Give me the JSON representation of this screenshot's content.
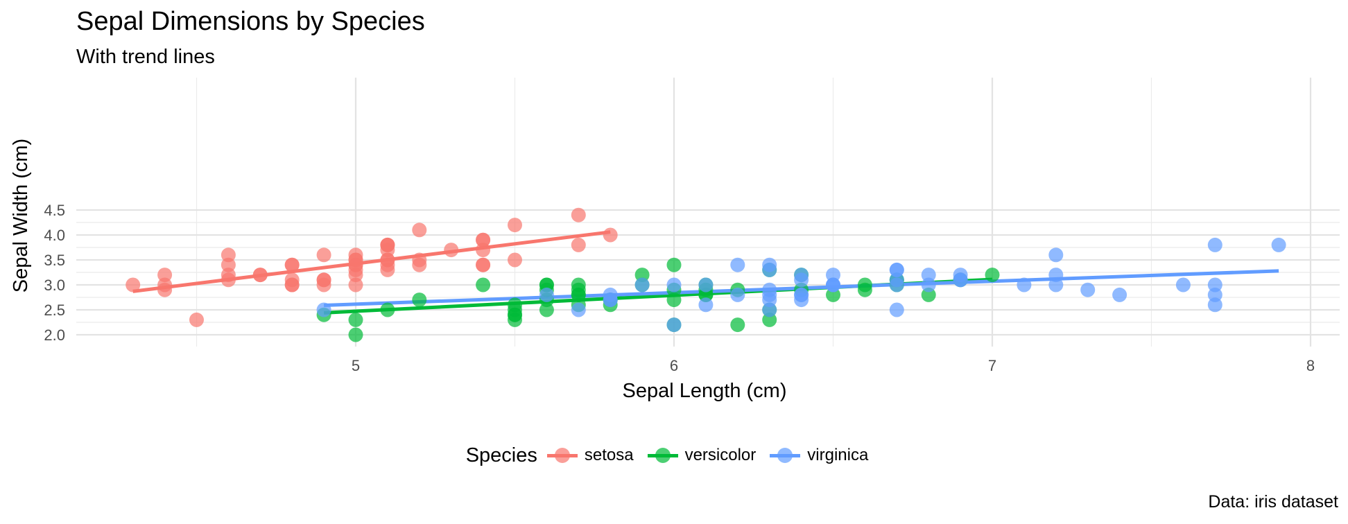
{
  "chart_data": {
    "type": "scatter",
    "title": "Sepal Dimensions by Species",
    "subtitle": "With trend lines",
    "xlabel": "Sepal Length (cm)",
    "ylabel": "Sepal Width (cm)",
    "caption": "Data: iris dataset",
    "xlim": [
      4.3,
      7.9
    ],
    "ylim": [
      2.0,
      4.4
    ],
    "x_ticks": [
      5,
      6,
      7,
      8
    ],
    "y_ticks": [
      "2.0",
      "2.5",
      "3.0",
      "3.5",
      "4.0",
      "4.5"
    ],
    "grid": true,
    "legend": {
      "title": "Species",
      "position": "bottom"
    },
    "series": [
      {
        "name": "setosa",
        "color": "#F8766D",
        "trend": [
          [
            4.3,
            2.87
          ],
          [
            5.8,
            4.06
          ]
        ],
        "points": [
          [
            5.1,
            3.5
          ],
          [
            4.9,
            3.0
          ],
          [
            4.7,
            3.2
          ],
          [
            4.6,
            3.1
          ],
          [
            5.0,
            3.6
          ],
          [
            5.4,
            3.9
          ],
          [
            4.6,
            3.4
          ],
          [
            5.0,
            3.4
          ],
          [
            4.4,
            2.9
          ],
          [
            4.9,
            3.1
          ],
          [
            5.4,
            3.7
          ],
          [
            4.8,
            3.4
          ],
          [
            4.8,
            3.0
          ],
          [
            4.3,
            3.0
          ],
          [
            5.8,
            4.0
          ],
          [
            5.7,
            4.4
          ],
          [
            5.4,
            3.9
          ],
          [
            5.1,
            3.5
          ],
          [
            5.7,
            3.8
          ],
          [
            5.1,
            3.8
          ],
          [
            5.4,
            3.4
          ],
          [
            5.1,
            3.7
          ],
          [
            4.6,
            3.6
          ],
          [
            5.1,
            3.3
          ],
          [
            4.8,
            3.4
          ],
          [
            5.0,
            3.0
          ],
          [
            5.0,
            3.4
          ],
          [
            5.2,
            3.5
          ],
          [
            5.2,
            3.4
          ],
          [
            4.7,
            3.2
          ],
          [
            4.8,
            3.1
          ],
          [
            5.4,
            3.4
          ],
          [
            5.2,
            4.1
          ],
          [
            5.5,
            4.2
          ],
          [
            4.9,
            3.1
          ],
          [
            5.0,
            3.2
          ],
          [
            5.5,
            3.5
          ],
          [
            4.9,
            3.6
          ],
          [
            4.4,
            3.0
          ],
          [
            5.1,
            3.4
          ],
          [
            5.0,
            3.5
          ],
          [
            4.5,
            2.3
          ],
          [
            4.4,
            3.2
          ],
          [
            5.0,
            3.5
          ],
          [
            5.1,
            3.8
          ],
          [
            4.8,
            3.0
          ],
          [
            5.1,
            3.8
          ],
          [
            4.6,
            3.2
          ],
          [
            5.3,
            3.7
          ],
          [
            5.0,
            3.3
          ]
        ]
      },
      {
        "name": "versicolor",
        "color": "#00BA38",
        "trend": [
          [
            4.9,
            2.44
          ],
          [
            7.0,
            3.11
          ]
        ],
        "points": [
          [
            7.0,
            3.2
          ],
          [
            6.4,
            3.2
          ],
          [
            6.9,
            3.1
          ],
          [
            5.5,
            2.3
          ],
          [
            6.5,
            2.8
          ],
          [
            5.7,
            2.8
          ],
          [
            6.3,
            3.3
          ],
          [
            4.9,
            2.4
          ],
          [
            6.6,
            2.9
          ],
          [
            5.2,
            2.7
          ],
          [
            5.0,
            2.0
          ],
          [
            5.9,
            3.0
          ],
          [
            6.0,
            2.2
          ],
          [
            6.1,
            2.9
          ],
          [
            5.6,
            2.9
          ],
          [
            6.7,
            3.1
          ],
          [
            5.6,
            3.0
          ],
          [
            5.8,
            2.7
          ],
          [
            6.2,
            2.2
          ],
          [
            5.6,
            2.5
          ],
          [
            5.9,
            3.2
          ],
          [
            6.1,
            2.8
          ],
          [
            6.3,
            2.5
          ],
          [
            6.1,
            2.8
          ],
          [
            6.4,
            2.9
          ],
          [
            6.6,
            3.0
          ],
          [
            6.8,
            2.8
          ],
          [
            6.7,
            3.0
          ],
          [
            6.0,
            2.9
          ],
          [
            5.7,
            2.6
          ],
          [
            5.5,
            2.4
          ],
          [
            5.5,
            2.4
          ],
          [
            5.8,
            2.7
          ],
          [
            6.0,
            2.7
          ],
          [
            5.4,
            3.0
          ],
          [
            6.0,
            3.4
          ],
          [
            6.7,
            3.1
          ],
          [
            6.3,
            2.3
          ],
          [
            5.6,
            3.0
          ],
          [
            5.5,
            2.5
          ],
          [
            5.5,
            2.6
          ],
          [
            6.1,
            3.0
          ],
          [
            5.8,
            2.6
          ],
          [
            5.0,
            2.3
          ],
          [
            5.6,
            2.7
          ],
          [
            5.7,
            3.0
          ],
          [
            5.7,
            2.9
          ],
          [
            6.2,
            2.9
          ],
          [
            5.1,
            2.5
          ],
          [
            5.7,
            2.8
          ]
        ]
      },
      {
        "name": "virginica",
        "color": "#619CFF",
        "trend": [
          [
            4.9,
            2.59
          ],
          [
            7.9,
            3.28
          ]
        ],
        "points": [
          [
            6.3,
            3.3
          ],
          [
            5.8,
            2.7
          ],
          [
            7.1,
            3.0
          ],
          [
            6.3,
            2.9
          ],
          [
            6.5,
            3.0
          ],
          [
            7.6,
            3.0
          ],
          [
            4.9,
            2.5
          ],
          [
            7.3,
            2.9
          ],
          [
            6.7,
            2.5
          ],
          [
            7.2,
            3.6
          ],
          [
            6.5,
            3.2
          ],
          [
            6.4,
            2.7
          ],
          [
            6.8,
            3.0
          ],
          [
            5.7,
            2.5
          ],
          [
            5.8,
            2.8
          ],
          [
            6.4,
            3.2
          ],
          [
            6.5,
            3.0
          ],
          [
            7.7,
            3.8
          ],
          [
            7.7,
            2.6
          ],
          [
            6.0,
            2.2
          ],
          [
            6.9,
            3.2
          ],
          [
            5.6,
            2.8
          ],
          [
            7.7,
            2.8
          ],
          [
            6.3,
            2.7
          ],
          [
            6.7,
            3.3
          ],
          [
            7.2,
            3.2
          ],
          [
            6.2,
            2.8
          ],
          [
            6.1,
            3.0
          ],
          [
            6.4,
            2.8
          ],
          [
            7.2,
            3.0
          ],
          [
            7.4,
            2.8
          ],
          [
            7.9,
            3.8
          ],
          [
            6.4,
            2.8
          ],
          [
            6.3,
            2.8
          ],
          [
            6.1,
            2.6
          ],
          [
            7.7,
            3.0
          ],
          [
            6.3,
            3.4
          ],
          [
            6.4,
            3.1
          ],
          [
            6.0,
            3.0
          ],
          [
            6.9,
            3.1
          ],
          [
            6.7,
            3.1
          ],
          [
            6.9,
            3.1
          ],
          [
            5.8,
            2.7
          ],
          [
            6.8,
            3.2
          ],
          [
            6.7,
            3.3
          ],
          [
            6.7,
            3.0
          ],
          [
            6.3,
            2.5
          ],
          [
            6.5,
            3.0
          ],
          [
            6.2,
            3.4
          ],
          [
            5.9,
            3.0
          ]
        ]
      }
    ]
  }
}
